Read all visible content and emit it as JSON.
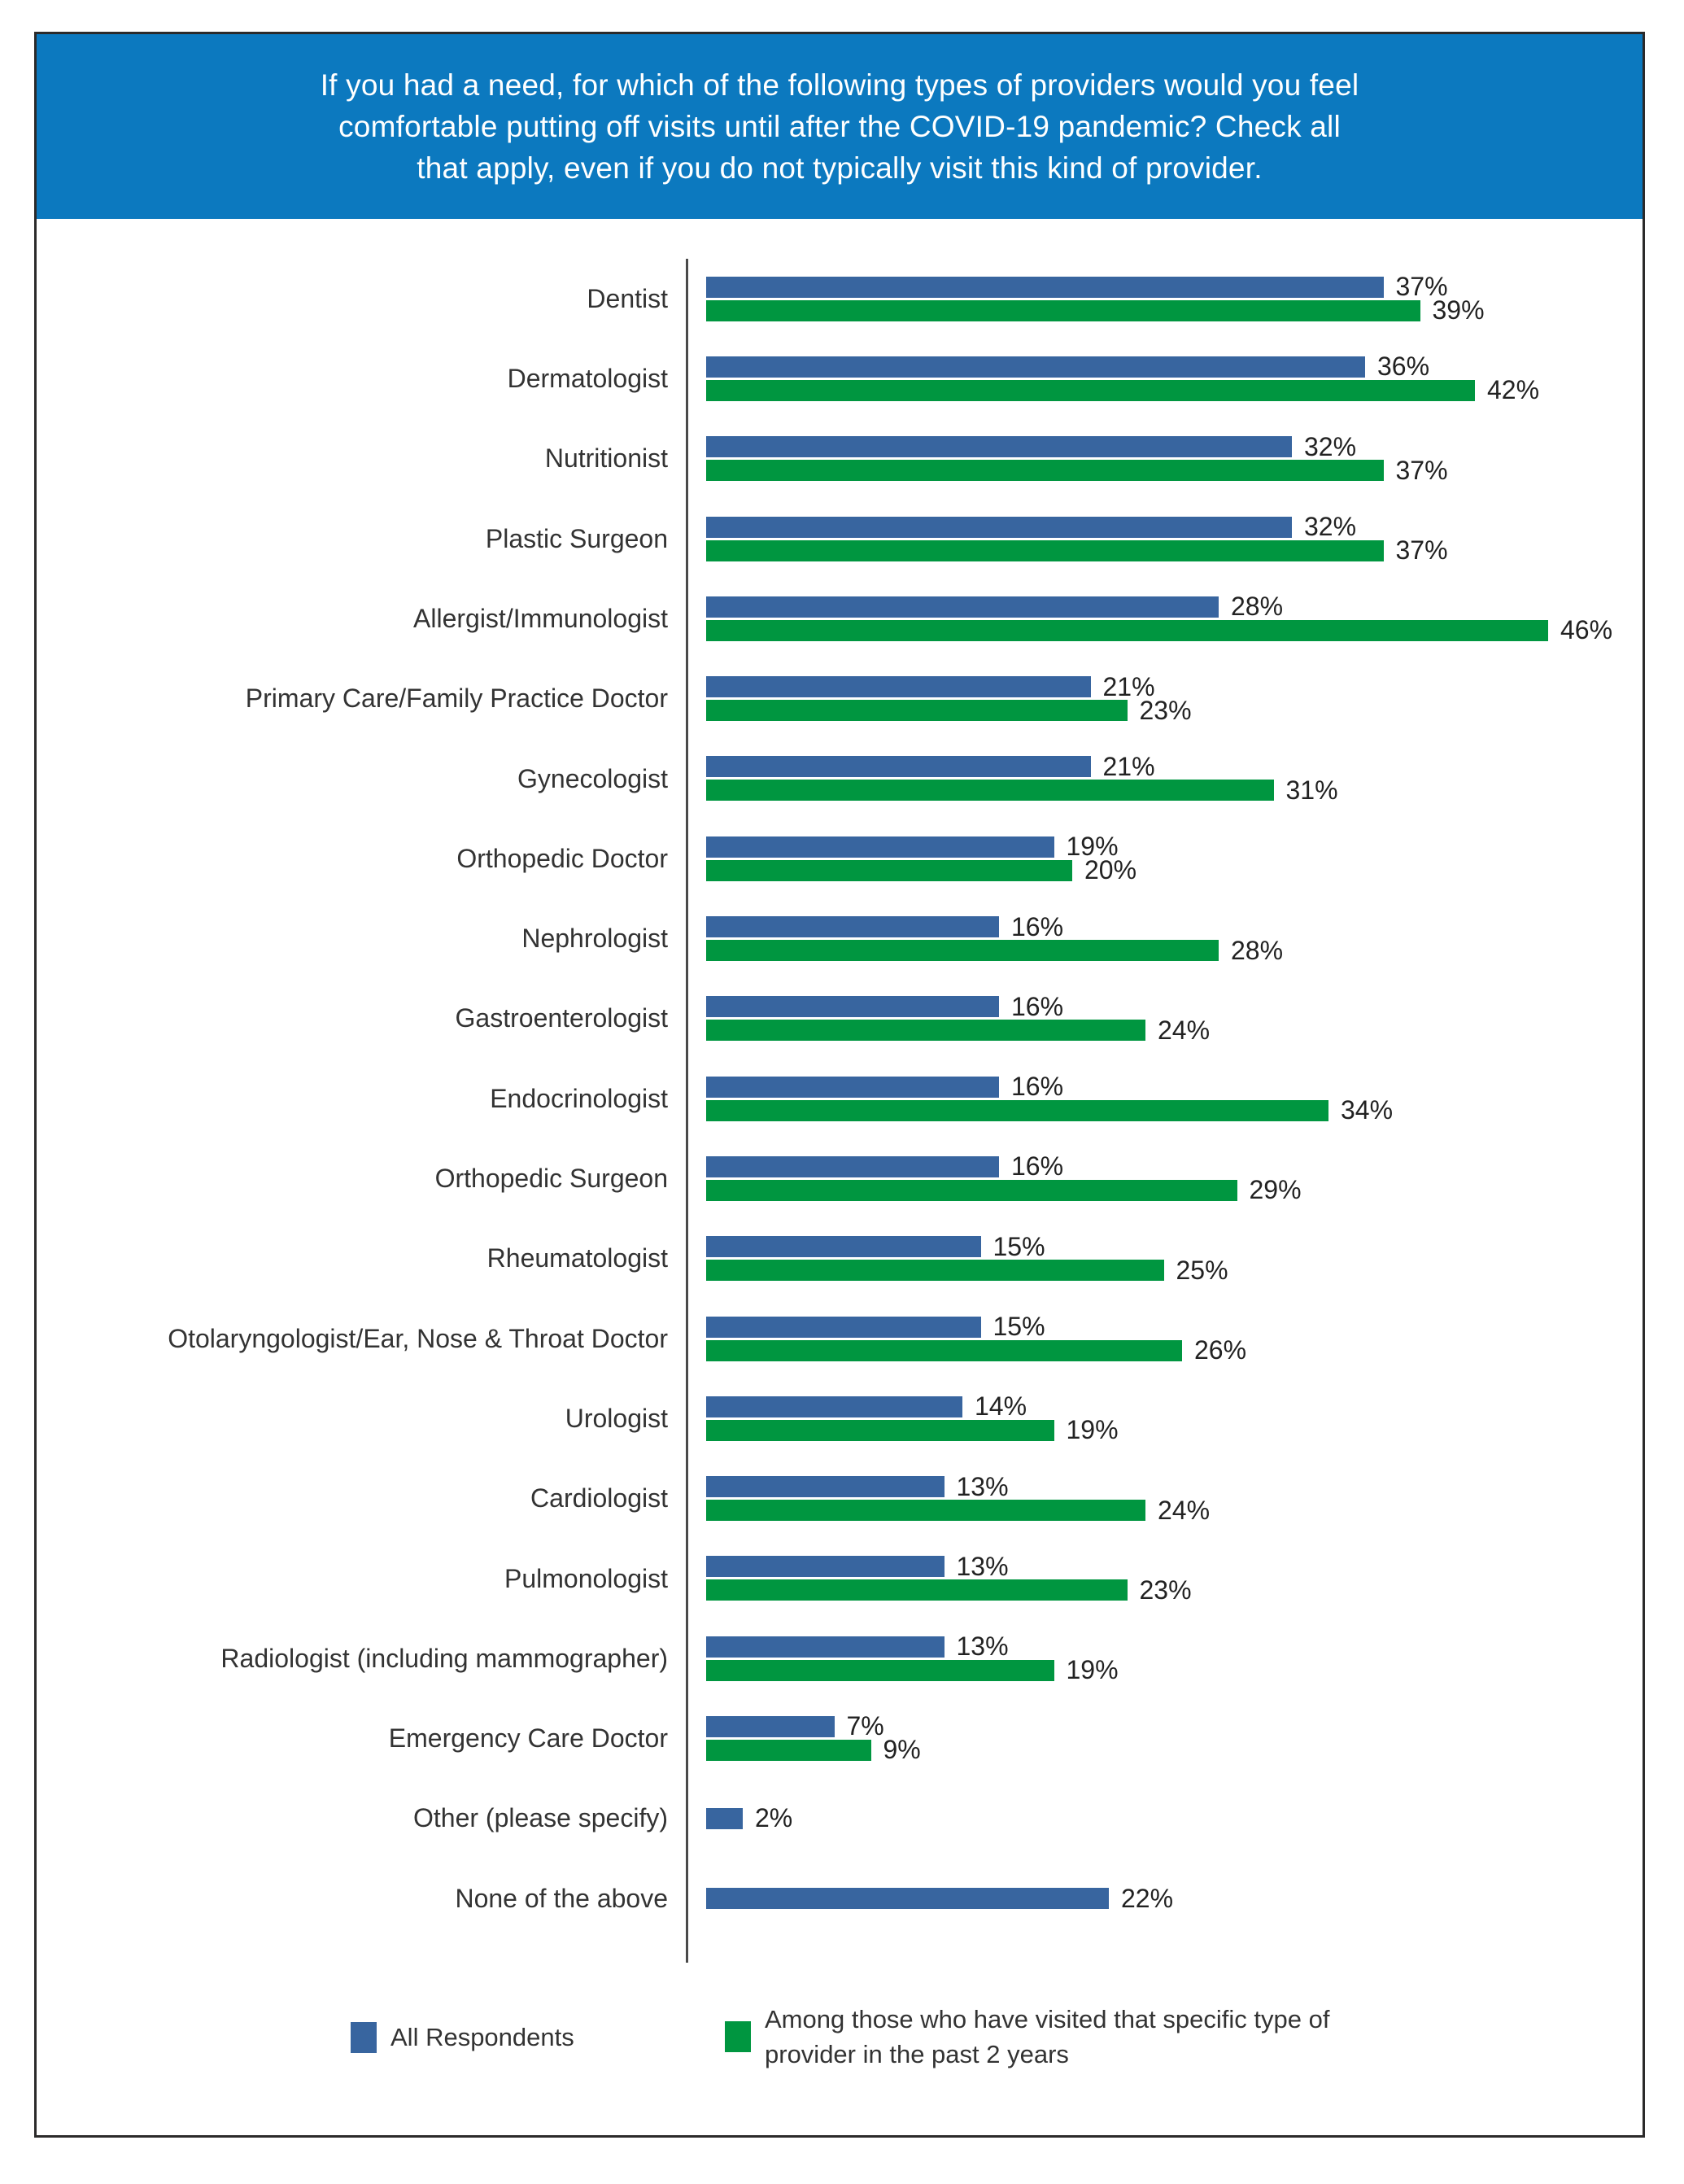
{
  "header": {
    "lines": [
      "If you had a need, for which of the following types of providers would you feel",
      "comfortable putting off visits until after the COVID-19 pandemic? Check all",
      "that apply, even if you do not typically visit this kind of provider."
    ]
  },
  "colors": {
    "header_bg": "#0c79bf",
    "header_text": "#ffffff",
    "all_respondents_blue": "#38659f",
    "visited_green": "#009640",
    "axis_line": "#4a4a4a",
    "frame_border": "#2b2a2a",
    "label_text": "#333333",
    "value_text": "#222222"
  },
  "chart_data": {
    "type": "bar",
    "orientation": "horizontal",
    "title": "If you had a need, for which of the following types of providers would you feel comfortable putting off visits until after the COVID-19 pandemic? Check all that apply, even if you do not typically visit this kind of provider.",
    "value_suffix": "%",
    "xlim": [
      0,
      50
    ],
    "grid": false,
    "legend_position": "bottom",
    "categories": [
      "Dentist",
      "Dermatologist",
      "Nutritionist",
      "Plastic Surgeon",
      "Allergist/Immunologist",
      "Primary Care/Family Practice Doctor",
      "Gynecologist",
      "Orthopedic Doctor",
      "Nephrologist",
      "Gastroenterologist",
      "Endocrinologist",
      "Orthopedic Surgeon",
      "Rheumatologist",
      "Otolaryngologist/Ear, Nose & Throat Doctor",
      "Urologist",
      "Cardiologist",
      "Pulmonologist",
      "Radiologist (including mammographer)",
      "Emergency Care Doctor",
      "Other (please specify)",
      "None of the above"
    ],
    "series": [
      {
        "name": "All Respondents",
        "color": "#38659f",
        "values": [
          37,
          36,
          32,
          32,
          28,
          21,
          21,
          19,
          16,
          16,
          16,
          16,
          15,
          15,
          14,
          13,
          13,
          13,
          7,
          2,
          22
        ]
      },
      {
        "name": "Among those who have visited that specific type of provider in the past 2 years",
        "color": "#009640",
        "values": [
          39,
          42,
          37,
          37,
          46,
          23,
          31,
          20,
          28,
          24,
          34,
          29,
          25,
          26,
          19,
          24,
          23,
          19,
          9,
          null,
          null
        ]
      }
    ]
  },
  "legend": {
    "items": [
      {
        "label": "All Respondents",
        "color": "#38659f"
      },
      {
        "label": "Among those who have visited that specific type of provider in the past 2 years",
        "color": "#009640"
      }
    ]
  }
}
